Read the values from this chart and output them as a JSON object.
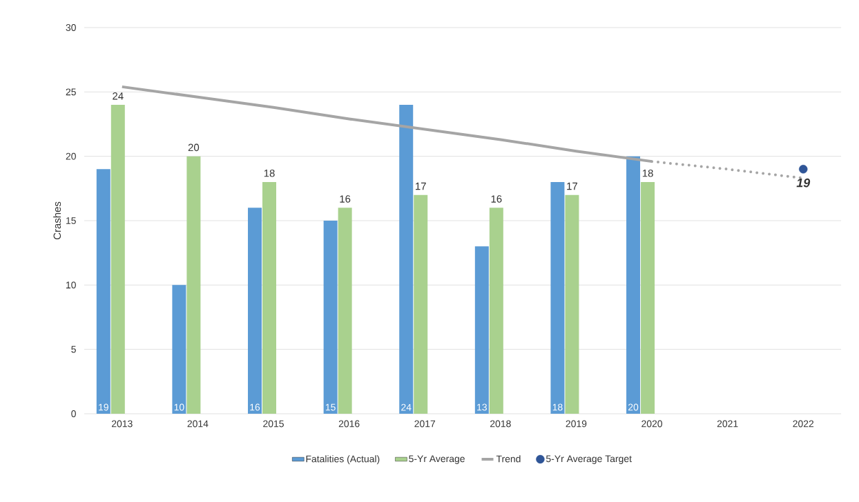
{
  "chart_data": {
    "type": "bar",
    "ylabel": "Crashes",
    "categories": [
      "2013",
      "2014",
      "2015",
      "2016",
      "2017",
      "2018",
      "2019",
      "2020",
      "2021",
      "2022"
    ],
    "series": [
      {
        "name": "Fatalities (Actual)",
        "color": "#5b9bd5",
        "values": [
          19,
          10,
          16,
          15,
          24,
          13,
          18,
          20,
          null,
          null
        ],
        "value_labels": [
          "19",
          "10",
          "16",
          "15",
          "24",
          "13",
          "18",
          "20",
          null,
          null
        ]
      },
      {
        "name": "5-Yr Average",
        "color": "#a9d18e",
        "values": [
          24,
          20,
          18,
          16,
          17,
          16,
          17,
          18,
          null,
          null
        ],
        "value_labels": [
          "24",
          "20",
          "18",
          "16",
          "17",
          "16",
          "17",
          "18",
          null,
          null
        ]
      },
      {
        "name": "Trend",
        "type": "line",
        "color": "#a5a5a5",
        "values": [
          25.4,
          24.6,
          23.8,
          22.9,
          22.1,
          21.3,
          20.4,
          19.6,
          null,
          null
        ],
        "line_style": "solid",
        "marker": "none"
      },
      {
        "type": "line",
        "color": "#a5a5a5",
        "values": [
          null,
          null,
          null,
          null,
          null,
          null,
          null,
          19.6,
          19.0,
          18.3
        ],
        "line_style": "dotted",
        "marker": "none"
      },
      {
        "name": "5-Yr Average Target",
        "type": "scatter",
        "color": "#2f5597",
        "values": [
          null,
          null,
          null,
          null,
          null,
          null,
          null,
          null,
          null,
          19
        ],
        "value_labels": [
          null,
          null,
          null,
          null,
          null,
          null,
          null,
          null,
          null,
          "19"
        ],
        "marker": "circle"
      }
    ],
    "ylim": [
      0,
      30
    ],
    "yticks": [
      0,
      5,
      10,
      15,
      20,
      25,
      30
    ],
    "grid": "y",
    "legend": "bottom"
  }
}
